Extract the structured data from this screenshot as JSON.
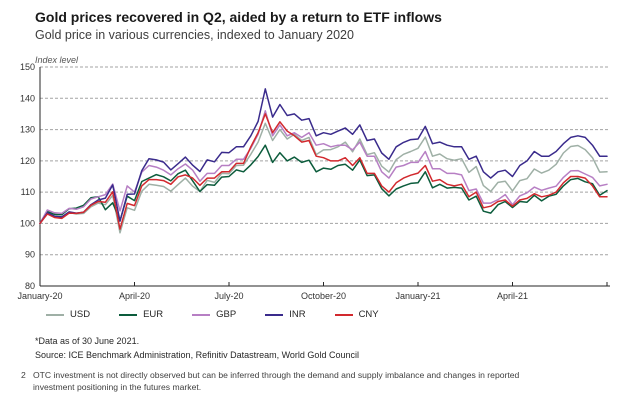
{
  "header": {
    "title": "Gold prices recovered in Q2, aided by a return to ETF inflows",
    "subtitle": "Gold price in various currencies, indexed to January 2020"
  },
  "chart_data": {
    "type": "line",
    "title": "Gold prices recovered in Q2, aided by a return to ETF inflows",
    "subtitle": "Gold price in various currencies, indexed to January 2020",
    "ylabel": "Index level",
    "xlabel": "",
    "ylim": [
      80,
      150
    ],
    "y_ticks": [
      80,
      90,
      100,
      110,
      120,
      130,
      140,
      150
    ],
    "x_tick_labels": [
      "January-20",
      "April-20",
      "July-20",
      "October-20",
      "January-21",
      "April-21"
    ],
    "x_unit": "weekly samples from January 2020 through 30 June 2021",
    "grid": "horizontal dashed",
    "legend_position": "bottom",
    "series": [
      {
        "name": "USD",
        "color": "#9FB0A6",
        "values": [
          100,
          103.3,
          102.3,
          102,
          103.5,
          103,
          103.2,
          105.3,
          106.5,
          106,
          109,
          97,
          105,
          104.2,
          110.3,
          112.5,
          112.2,
          111.8,
          110.3,
          112.4,
          114.5,
          111.9,
          110.2,
          113.8,
          113.1,
          116,
          115.9,
          118.5,
          118.6,
          122.1,
          126,
          132,
          126.5,
          130,
          127,
          128.5,
          126.5,
          127.5,
          122,
          123.5,
          123.6,
          124.5,
          126,
          122.9,
          127,
          122,
          122.6,
          118.3,
          116.4,
          120.4,
          122.1,
          123,
          124,
          127.6,
          121.5,
          122.2,
          120.7,
          120.2,
          120.7,
          116.3,
          118.2,
          112.1,
          110.2,
          113.1,
          113.5,
          110.4,
          113.7,
          114.3,
          117.4,
          116.1,
          117,
          118.9,
          122.5,
          124.6,
          124.9,
          123.6,
          121,
          116.4,
          116.5
        ]
      },
      {
        "name": "EUR",
        "color": "#0C5C3C",
        "values": [
          100,
          103.8,
          102.9,
          102.8,
          104.7,
          104.9,
          105.8,
          108.2,
          108.5,
          104.4,
          106.6,
          100.9,
          108.7,
          107.3,
          113.4,
          114.5,
          115.6,
          114.9,
          113.6,
          115.9,
          117,
          113.6,
          110.2,
          112.4,
          112.2,
          114.8,
          115,
          117.1,
          116.5,
          118.7,
          121.4,
          125,
          119.5,
          122.6,
          120,
          121.2,
          119.5,
          120.2,
          116.5,
          117.7,
          117.3,
          118.5,
          118.9,
          117,
          120.3,
          115.3,
          115.5,
          111.1,
          108.8,
          111,
          112,
          112.8,
          113,
          116.5,
          111.4,
          112.5,
          111.3,
          111.5,
          111.3,
          107.5,
          108.7,
          103.9,
          103.3,
          106,
          107,
          105.1,
          107,
          106.8,
          109,
          107.2,
          108.7,
          109.3,
          112,
          114,
          114.4,
          113.3,
          112.7,
          109,
          110.5
        ]
      },
      {
        "name": "GBP",
        "color": "#B77FC4",
        "values": [
          100,
          104.3,
          103.4,
          103.2,
          104.8,
          104.5,
          105.3,
          107.8,
          108.5,
          109.2,
          112.6,
          104,
          112,
          110,
          116.4,
          118.5,
          118,
          117,
          115.5,
          117.5,
          119,
          117,
          113.5,
          116,
          116,
          118.5,
          118.5,
          120.5,
          120.5,
          124,
          128.5,
          136,
          128,
          131.5,
          128,
          129,
          127.5,
          129,
          125,
          125.5,
          124.5,
          125,
          125,
          123.5,
          126,
          121.5,
          121.5,
          116.5,
          114.5,
          118,
          118.5,
          119.5,
          119.5,
          123,
          117.5,
          117.5,
          116,
          116,
          115.5,
          110.5,
          111,
          106.5,
          106.5,
          107.6,
          109.2,
          106,
          108.8,
          109.8,
          111.6,
          110.6,
          111.3,
          111.9,
          114.7,
          116.8,
          116.9,
          115.8,
          114.7,
          112,
          112.5
        ]
      },
      {
        "name": "INR",
        "color": "#3A2B8C",
        "values": [
          100,
          103.4,
          102.3,
          102.1,
          103.7,
          103.3,
          103.6,
          106,
          107.5,
          108.1,
          112.3,
          100.7,
          109.3,
          109.4,
          116.9,
          120.7,
          120.3,
          119.6,
          117.1,
          119.1,
          121.2,
          118.6,
          116.6,
          120.3,
          119.7,
          122.7,
          122.6,
          124.5,
          124.5,
          128,
          132.6,
          143,
          134,
          138,
          134.5,
          135,
          133,
          133.5,
          128,
          129,
          128.5,
          129.5,
          130.5,
          128.5,
          131.5,
          126.5,
          127,
          122.5,
          120.5,
          124.5,
          125.9,
          126.8,
          127,
          131,
          125.5,
          126,
          125,
          124.5,
          124.5,
          120.5,
          121.5,
          116.5,
          114.5,
          116.5,
          117,
          115,
          118.5,
          120,
          123,
          121.5,
          121.5,
          123,
          125.5,
          127.5,
          128,
          127.5,
          125,
          121.5,
          121.5
        ]
      },
      {
        "name": "CNY",
        "color": "#D2292E",
        "values": [
          100,
          103,
          101.9,
          101.6,
          103.3,
          103.2,
          103.6,
          105.8,
          107,
          106.8,
          110.1,
          98.2,
          106.4,
          105.7,
          112,
          114,
          114,
          113.7,
          112.5,
          114.9,
          115.5,
          114.5,
          112.2,
          114.5,
          114.5,
          116.5,
          116.5,
          119.2,
          119.2,
          124.5,
          129,
          135,
          129,
          132.5,
          129.5,
          128,
          126,
          126.5,
          121.5,
          121,
          120,
          120,
          121,
          118.5,
          121,
          116,
          116,
          112,
          110,
          113,
          114.5,
          115.4,
          116.1,
          118.5,
          113.5,
          114,
          112.5,
          112,
          112.5,
          108.5,
          110,
          105,
          105.5,
          107,
          107.5,
          105.5,
          107.5,
          108,
          109.5,
          108.5,
          109,
          110,
          113,
          115,
          115,
          114.5,
          112,
          108.5,
          108.5
        ]
      }
    ]
  },
  "footnotes": {
    "data_note": "*Data as of 30 June 2021.",
    "source": "Source: ICE Benchmark Administration, Refinitiv Datastream, World Gold Council",
    "note_number": "2",
    "note_text": "OTC investment is not directly observed but can be inferred through the demand and supply imbalance and changes in reported investment positioning in the futures market."
  }
}
